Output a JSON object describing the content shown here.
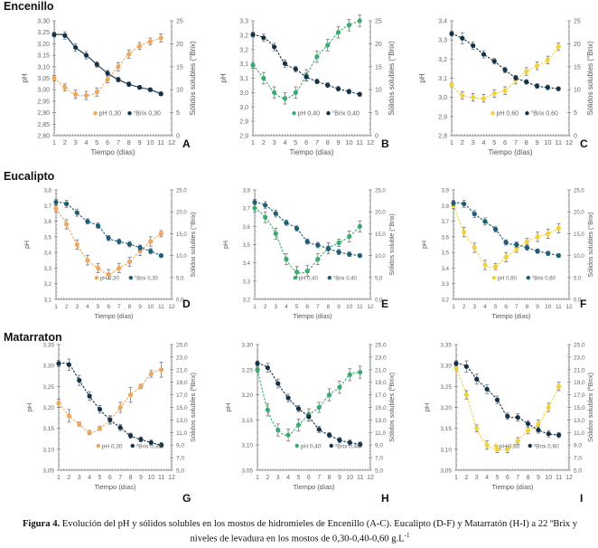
{
  "row_titles": [
    "Encenillo",
    "Eucalipto",
    "Matarraton"
  ],
  "caption": {
    "bold": "Figura 4.",
    "text": " Evolución del pH y sólidos solubles en los mostos de hidromieles de Encenillo (A-C). Eucalipto (D-F) y Matarratón (H-I) a 22 ºBrix y niveles de levadura en los mostos de 0,30-0,40-0,60 g.L",
    "sup": "-1"
  },
  "colors": {
    "ph_030": "#f0a75c",
    "ph_040": "#3aaa6e",
    "ph_060": "#f2d23a",
    "brix_dark": "#12324a",
    "brix_teal": "#1c5d78",
    "axis": "#888888",
    "error_bar": "#777777"
  },
  "chart_data": [
    {
      "type": "line",
      "panel": "A",
      "row": 0,
      "col": 0,
      "xlabel": "Tiempo (días)",
      "ylabel": "pH",
      "y2label": "Sólidos solubles (°Brix)",
      "x": [
        1,
        2,
        3,
        4,
        5,
        6,
        7,
        8,
        9,
        10,
        11
      ],
      "xlim": [
        1,
        12
      ],
      "ylim": [
        2.8,
        3.3
      ],
      "yticks": [
        "2,80",
        "2,85",
        "2,90",
        "2,95",
        "3,00",
        "3,05",
        "3,10",
        "3,15",
        "3,20",
        "3,25",
        "3,30"
      ],
      "y2lim": [
        0,
        25
      ],
      "y2ticks": [
        "0",
        "5",
        "10",
        "15",
        "20",
        "25"
      ],
      "series": [
        {
          "name": "pH 0,30",
          "axis": "left",
          "color": "ph_030",
          "dashed": true,
          "values": [
            3.05,
            3.01,
            2.98,
            2.975,
            2.99,
            3.045,
            3.1,
            3.155,
            3.19,
            3.21,
            3.225
          ],
          "err": [
            0.012,
            0.015,
            0.018,
            0.018,
            0.018,
            0.015,
            0.018,
            0.018,
            0.015,
            0.015,
            0.018
          ]
        },
        {
          "name": "°Brix 0,30",
          "axis": "right",
          "color": "brix_dark",
          "dashed": false,
          "values": [
            22.0,
            21.8,
            19.2,
            17.5,
            15.5,
            13.6,
            12.2,
            11.2,
            10.5,
            10.0,
            9.1
          ],
          "err": [
            0.5,
            0.8,
            0.8,
            0.8,
            0.6,
            0.6,
            0.5,
            0.5,
            0.4,
            0.4,
            0.4
          ]
        }
      ],
      "legend": "bottom-center"
    },
    {
      "type": "line",
      "panel": "B",
      "row": 0,
      "col": 1,
      "xlabel": "Tiempo (días)",
      "ylabel": "pH",
      "y2label": "Sólidos solubles (°Brix)",
      "x": [
        1,
        2,
        3,
        4,
        5,
        6,
        7,
        8,
        9,
        10,
        11
      ],
      "xlim": [
        1,
        12
      ],
      "ylim": [
        2.9,
        3.3
      ],
      "yticks": [
        "2,9",
        "2,9",
        "3,0",
        "3,0",
        "3,1",
        "3,1",
        "3,2",
        "3,2",
        "3,3"
      ],
      "y2lim": [
        0,
        25
      ],
      "y2ticks": [
        "0",
        "5",
        "10",
        "15",
        "20",
        "25"
      ],
      "series": [
        {
          "name": "pH 0,40",
          "axis": "left",
          "color": "ph_040",
          "dashed": true,
          "values": [
            3.145,
            3.1,
            3.05,
            3.03,
            3.05,
            3.11,
            3.175,
            3.215,
            3.26,
            3.285,
            3.3
          ],
          "err": [
            0.01,
            0.02,
            0.02,
            0.02,
            0.02,
            0.02,
            0.02,
            0.02,
            0.02,
            0.02,
            0.02
          ]
        },
        {
          "name": "°Brix 0,40",
          "axis": "right",
          "color": "brix_dark",
          "dashed": true,
          "values": [
            22.0,
            21.3,
            19.3,
            15.7,
            14.5,
            12.8,
            11.8,
            11.0,
            10.2,
            9.6,
            9.0
          ],
          "err": [
            0.5,
            0.8,
            0.8,
            0.8,
            0.6,
            0.8,
            0.5,
            0.5,
            0.5,
            0.5,
            0.4
          ]
        }
      ],
      "legend": "bottom-center"
    },
    {
      "type": "line",
      "panel": "C",
      "row": 0,
      "col": 2,
      "xlabel": "Tiempo (días)",
      "ylabel": "pH",
      "y2label": "Sólidos solubles (°Brix)",
      "x": [
        1,
        2,
        3,
        4,
        5,
        6,
        7,
        8,
        9,
        10,
        11
      ],
      "xlim": [
        1,
        12
      ],
      "ylim": [
        2.8,
        3.4
      ],
      "yticks": [
        "2,8",
        "2,9",
        "3,0",
        "3,1",
        "3,2",
        "3,3",
        "3,4"
      ],
      "y2lim": [
        0,
        25
      ],
      "y2ticks": [
        "0",
        "5",
        "10",
        "15",
        "20",
        "25"
      ],
      "series": [
        {
          "name": "pH 0,60",
          "axis": "left",
          "color": "ph_060",
          "dashed": true,
          "values": [
            3.065,
            3.01,
            3.0,
            2.995,
            3.02,
            3.035,
            3.09,
            3.135,
            3.165,
            3.195,
            3.265
          ],
          "err": [
            0.01,
            0.02,
            0.02,
            0.02,
            0.02,
            0.02,
            0.02,
            0.02,
            0.02,
            0.02,
            0.02
          ]
        },
        {
          "name": "°Brix 0,60",
          "axis": "right",
          "color": "brix_dark",
          "dashed": true,
          "values": [
            22.2,
            21.2,
            19.6,
            17.7,
            16.2,
            14.3,
            12.6,
            11.7,
            10.8,
            10.5,
            10.2
          ],
          "err": [
            0.5,
            1.2,
            0.8,
            0.8,
            0.6,
            0.6,
            0.5,
            0.5,
            0.5,
            0.5,
            0.4
          ]
        }
      ],
      "legend": "bottom-center"
    },
    {
      "type": "line",
      "panel": "D",
      "row": 1,
      "col": 0,
      "xlabel": "Tiempo (días)",
      "ylabel": "pH",
      "y2label": "Sólidos solubles (°Brix)",
      "x": [
        1,
        2,
        3,
        4,
        5,
        6,
        7,
        8,
        9,
        10,
        11
      ],
      "xlim": [
        1,
        12
      ],
      "ylim": [
        3.1,
        3.8
      ],
      "yticks": [
        "3,1",
        "3,2",
        "3,3",
        "3,4",
        "3,5",
        "3,6",
        "3,7",
        "3,8"
      ],
      "y2lim": [
        0,
        25
      ],
      "y2ticks": [
        "0,0",
        "5,0",
        "10,0",
        "15,0",
        "20,0",
        "25,0"
      ],
      "series": [
        {
          "name": "pH 0,30",
          "axis": "left",
          "color": "ph_030",
          "dashed": true,
          "values": [
            3.68,
            3.58,
            3.45,
            3.35,
            3.3,
            3.26,
            3.3,
            3.34,
            3.41,
            3.47,
            3.52
          ],
          "err": [
            0.02,
            0.03,
            0.03,
            0.03,
            0.03,
            0.03,
            0.03,
            0.03,
            0.03,
            0.03,
            0.02
          ]
        },
        {
          "name": "°Brix 0,30",
          "axis": "right",
          "color": "brix_teal",
          "dashed": true,
          "values": [
            22.2,
            21.8,
            19.8,
            17.8,
            16.8,
            14.0,
            13.2,
            12.6,
            11.8,
            11.0,
            10.0
          ],
          "err": [
            0.6,
            0.8,
            0.8,
            0.6,
            0.6,
            0.6,
            0.6,
            0.6,
            0.6,
            0.6,
            0.4
          ]
        }
      ],
      "legend": "bottom-center"
    },
    {
      "type": "line",
      "panel": "E",
      "row": 1,
      "col": 1,
      "xlabel": "Tiempo (días)",
      "ylabel": "pH",
      "y2label": "Sólidos soluble (°Brix)",
      "x": [
        1,
        2,
        3,
        4,
        5,
        6,
        7,
        8,
        9,
        10,
        11
      ],
      "xlim": [
        1,
        12
      ],
      "ylim": [
        3.2,
        3.8
      ],
      "yticks": [
        "3,2",
        "3,3",
        "3,4",
        "3,5",
        "3,6",
        "3,7",
        "3,8"
      ],
      "y2lim": [
        0,
        25
      ],
      "y2ticks": [
        "0,0",
        "5,0",
        "10,0",
        "15,0",
        "20,0",
        "25,0"
      ],
      "series": [
        {
          "name": "pH 0,40",
          "axis": "left",
          "color": "ph_040",
          "dashed": true,
          "values": [
            3.7,
            3.65,
            3.56,
            3.42,
            3.35,
            3.355,
            3.42,
            3.48,
            3.51,
            3.545,
            3.6
          ],
          "err": [
            0.02,
            0.03,
            0.03,
            0.03,
            0.03,
            0.03,
            0.03,
            0.03,
            0.02,
            0.03,
            0.03
          ]
        },
        {
          "name": "°Brix 0,40",
          "axis": "right",
          "color": "brix_teal",
          "dashed": true,
          "values": [
            22.2,
            21.5,
            19.6,
            17.5,
            16.2,
            13.2,
            12.4,
            11.6,
            10.8,
            10.3,
            10.0
          ],
          "err": [
            0.6,
            0.8,
            0.8,
            0.6,
            0.6,
            0.6,
            0.6,
            0.6,
            0.6,
            0.5,
            0.4
          ]
        }
      ],
      "legend": "bottom-center"
    },
    {
      "type": "line",
      "panel": "F",
      "row": 1,
      "col": 2,
      "xlabel": "Tiempo (días)",
      "ylabel": "pH",
      "y2label": "Sólidos solubles (°Brix)",
      "x": [
        1,
        2,
        3,
        4,
        5,
        6,
        7,
        8,
        9,
        10,
        11
      ],
      "xlim": [
        1,
        12
      ],
      "ylim": [
        3.2,
        3.9
      ],
      "yticks": [
        "3,2",
        "3,3",
        "3,4",
        "3,5",
        "3,6",
        "3,7",
        "3,8",
        "3,9"
      ],
      "y2lim": [
        0,
        25
      ],
      "y2ticks": [
        "0,0",
        "5,0",
        "10,0",
        "15,0",
        "20,0",
        "25,0"
      ],
      "series": [
        {
          "name": "pH 0,60",
          "axis": "left",
          "color": "ph_060",
          "dashed": true,
          "values": [
            3.8,
            3.63,
            3.53,
            3.42,
            3.41,
            3.47,
            3.52,
            3.57,
            3.6,
            3.62,
            3.655
          ],
          "err": [
            0.02,
            0.03,
            0.03,
            0.03,
            0.02,
            0.03,
            0.02,
            0.02,
            0.03,
            0.03,
            0.03
          ]
        },
        {
          "name": "°Brix 0,60",
          "axis": "right",
          "color": "brix_teal",
          "dashed": true,
          "values": [
            22.0,
            21.8,
            19.5,
            17.8,
            16.0,
            13.0,
            12.5,
            11.8,
            11.0,
            10.5,
            10.0
          ],
          "err": [
            0.6,
            0.8,
            0.8,
            0.8,
            0.6,
            0.6,
            0.6,
            0.6,
            0.5,
            0.5,
            0.4
          ]
        }
      ],
      "legend": "bottom-center"
    },
    {
      "type": "line",
      "panel": "G",
      "row": 2,
      "col": 0,
      "xlabel": "Tiempo (días)",
      "ylabel": "pH",
      "y2label": "Sólidos solubles (ºBrix)",
      "x": [
        1,
        2,
        3,
        4,
        5,
        6,
        7,
        8,
        9,
        10,
        11
      ],
      "xlim": [
        1,
        12
      ],
      "ylim": [
        3.05,
        3.35
      ],
      "yticks": [
        "3,05",
        "3,10",
        "3,15",
        "3,20",
        "3,25",
        "3,30",
        "3,35"
      ],
      "y2lim": [
        5,
        25
      ],
      "y2ticks": [
        "5,0",
        "7,0",
        "9,0",
        "11,0",
        "13,0",
        "15,0",
        "17,0",
        "19,0",
        "21,0",
        "23,0",
        "25,0"
      ],
      "series": [
        {
          "name": "pH 0,30",
          "axis": "left",
          "color": "ph_030",
          "dashed": true,
          "values": [
            3.21,
            3.18,
            3.16,
            3.14,
            3.15,
            3.17,
            3.2,
            3.23,
            3.25,
            3.28,
            3.29
          ],
          "err": [
            0.01,
            0.015,
            0.005,
            0.005,
            0.005,
            0.01,
            0.012,
            0.018,
            0.005,
            0.008,
            0.018
          ]
        },
        {
          "name": "ºBrix 0,30",
          "axis": "right",
          "color": "brix_dark",
          "dashed": true,
          "values": [
            22.0,
            21.8,
            19.3,
            16.8,
            14.7,
            13.0,
            11.8,
            10.5,
            9.9,
            9.4,
            9.0
          ],
          "err": [
            0.5,
            0.9,
            0.8,
            0.7,
            0.6,
            0.5,
            0.5,
            0.4,
            0.4,
            0.4,
            0.4
          ]
        }
      ],
      "legend": "bottom-center"
    },
    {
      "type": "line",
      "panel": "H",
      "row": 2,
      "col": 1,
      "xlabel": "Tiempo (días)",
      "ylabel": "pH",
      "y2label": "Sólidos solubles (ºBrix)",
      "x": [
        1,
        2,
        3,
        4,
        5,
        6,
        7,
        8,
        9,
        10,
        11
      ],
      "xlim": [
        1,
        12
      ],
      "ylim": [
        3.05,
        3.3
      ],
      "yticks": [
        "3,05",
        "3,10",
        "3,15",
        "3,20",
        "3,25",
        "3,30"
      ],
      "y2lim": [
        5,
        25
      ],
      "y2ticks": [
        "5,0",
        "7,0",
        "9,0",
        "11,0",
        "13,0",
        "15,0",
        "17,0",
        "19,0",
        "21,0",
        "23,0",
        "25,0"
      ],
      "series": [
        {
          "name": "pH 0,40",
          "axis": "left",
          "color": "ph_040",
          "dashed": true,
          "values": [
            3.25,
            3.17,
            3.13,
            3.12,
            3.14,
            3.16,
            3.175,
            3.2,
            3.215,
            3.24,
            3.245
          ],
          "err": [
            0.005,
            0.012,
            0.012,
            0.012,
            0.012,
            0.012,
            0.01,
            0.012,
            0.012,
            0.012,
            0.012
          ]
        },
        {
          "name": "ºBrix 0,40",
          "axis": "right",
          "color": "brix_dark",
          "dashed": true,
          "values": [
            22.0,
            21.3,
            18.8,
            16.5,
            14.8,
            13.5,
            11.5,
            10.6,
            9.8,
            9.4,
            9.1
          ],
          "err": [
            0.4,
            0.7,
            0.7,
            0.6,
            0.5,
            0.7,
            0.5,
            0.4,
            0.4,
            0.4,
            0.4
          ]
        }
      ],
      "legend": "bottom-center"
    },
    {
      "type": "line",
      "panel": "I",
      "row": 2,
      "col": 2,
      "xlabel": "Tiempo (días)",
      "ylabel": "pH",
      "y2label": "Sólidos solubles (ºBrix)",
      "x": [
        1,
        2,
        3,
        4,
        5,
        6,
        7,
        8,
        9,
        10,
        11
      ],
      "xlim": [
        1,
        12
      ],
      "ylim": [
        3.05,
        3.35
      ],
      "yticks": [
        "3,05",
        "3,10",
        "3,15",
        "3,20",
        "3,25",
        "3,30",
        "3,35"
      ],
      "y2lim": [
        5,
        25
      ],
      "y2ticks": [
        "5,0",
        "7,0",
        "9,0",
        "11,0",
        "13,0",
        "15,0",
        "17,0",
        "19,0",
        "21,0",
        "23,0",
        "25,0"
      ],
      "series": [
        {
          "name": "pH 0,60",
          "axis": "left",
          "color": "ph_060",
          "dashed": true,
          "values": [
            3.295,
            3.23,
            3.15,
            3.11,
            3.1,
            3.1,
            3.12,
            3.145,
            3.16,
            3.2,
            3.25
          ],
          "err": [
            0.005,
            0.01,
            0.008,
            0.01,
            0.008,
            0.008,
            0.008,
            0.008,
            0.01,
            0.01,
            0.01
          ]
        },
        {
          "name": "ºBrix 0,60",
          "axis": "right",
          "color": "brix_dark",
          "dashed": true,
          "values": [
            22.0,
            21.5,
            19.5,
            17.9,
            16.2,
            13.6,
            13.4,
            12.4,
            11.4,
            10.8,
            10.6
          ],
          "err": [
            0.4,
            0.9,
            0.8,
            0.7,
            0.6,
            0.5,
            0.6,
            0.5,
            0.5,
            0.5,
            0.4
          ]
        }
      ],
      "legend": "bottom-center"
    }
  ]
}
